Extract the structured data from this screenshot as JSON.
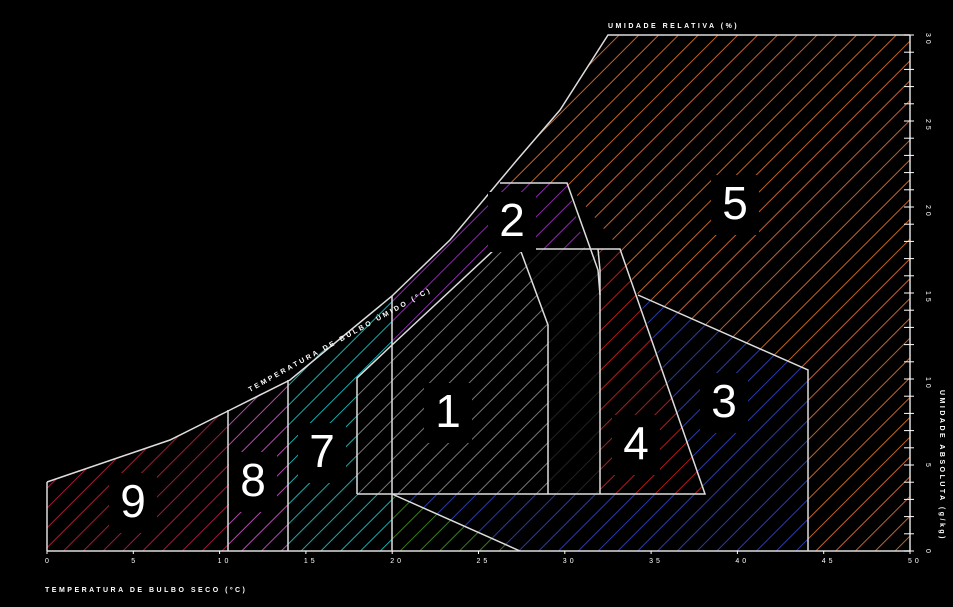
{
  "axis_titles": {
    "dry_bulb": "TEMPERATURA DE BULBO SECO (ºC)",
    "wet_bulb": "TEMPERATURA DE BULBO ÚMIDO (ºC)",
    "relative_humidity": "UMIDADE RELATIVA (%)",
    "absolute_humidity": "UMIDADE ABSOLUTA (g/kg)"
  },
  "x_ticks": [
    "0",
    "5",
    "10",
    "15",
    "20",
    "25",
    "30",
    "35",
    "40",
    "45",
    "50"
  ],
  "y_ticks": [
    "0",
    "5",
    "10",
    "15",
    "20",
    "25",
    "30"
  ],
  "zones": [
    "1",
    "2",
    "3",
    "4",
    "5",
    "7",
    "8",
    "9"
  ]
}
